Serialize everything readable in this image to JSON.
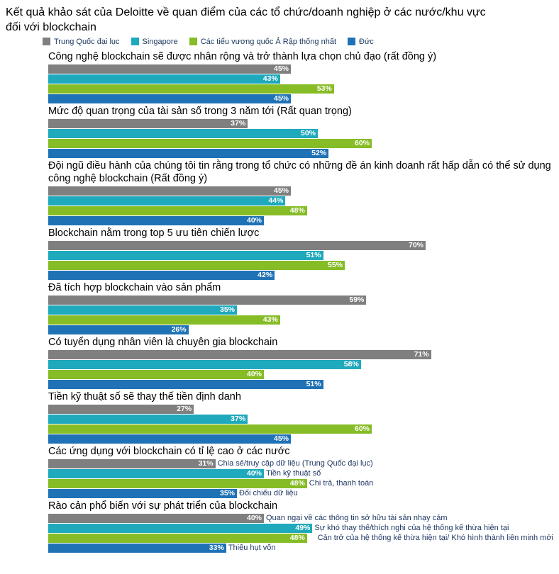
{
  "title": "Kết quả khảo sát của Deloitte về quan điểm của các tổ chức/doanh nghiệp ở các nước/khu vực đối với blockchain",
  "legend": [
    {
      "label": "Trung Quốc đại lục",
      "color": "#7F7F7F"
    },
    {
      "label": "Singapore",
      "color": "#1FA9BC"
    },
    {
      "label": "Các tiểu vương quốc Ả Rập thống nhất",
      "color": "#86BC25"
    },
    {
      "label": "Đức",
      "color": "#1F72B5"
    }
  ],
  "chart_data": {
    "type": "bar",
    "orientation": "horizontal",
    "value_unit": "%",
    "xlim": [
      0,
      100
    ],
    "legend_position": "top",
    "series": [
      "Trung Quốc đại lục",
      "Singapore",
      "Các tiểu vương quốc Ả Rập thống nhất",
      "Đức"
    ],
    "groups": [
      {
        "label": "Công nghệ blockchain sẽ được nhân rộng và trở thành lựa chọn chủ đạo (rất đồng ý)",
        "values": [
          45,
          43,
          53,
          45
        ]
      },
      {
        "label": "Mức độ quan trọng của tài sản số trong 3 năm tới (Rất quan trọng)",
        "values": [
          37,
          50,
          60,
          52
        ]
      },
      {
        "label": "Đội ngũ điều hành của chúng tôi tin rằng trong tổ chức có những đề án kinh doanh rất hấp dẫn có thể sử dụng công nghệ blockchain (Rất đồng ý)",
        "values": [
          45,
          44,
          48,
          40
        ]
      },
      {
        "label": "Blockchain nằm trong top 5 ưu tiên chiến lược",
        "values": [
          70,
          51,
          55,
          42
        ]
      },
      {
        "label": "Đã tích hợp blockchain vào sản phẩm",
        "values": [
          59,
          35,
          43,
          26
        ]
      },
      {
        "label": "Có tuyển dụng nhân viên là chuyên gia blockchain",
        "values": [
          71,
          58,
          40,
          51
        ]
      },
      {
        "label": "Tiền kỹ thuật số sẽ thay thế tiền định danh",
        "values": [
          27,
          37,
          60,
          45
        ]
      },
      {
        "label": "Các ứng dụng với blockchain có tỉ lệ cao ở các nước",
        "values": [
          31,
          40,
          48,
          35
        ],
        "annotations": [
          "Chia sẻ/truy cập dữ liệu (Trung Quốc đại lục)",
          "Tiền kỹ thuật số",
          "Chi trả, thanh toán",
          "Đối chiếu dữ liệu"
        ]
      },
      {
        "label": "Rào cản phổ biến với sự phát triển của blockchain",
        "values": [
          40,
          49,
          48,
          33
        ],
        "annotations": [
          "Quan ngại về các thông tin sở hữu tài sản nhạy cảm",
          "Sự khó thay thế/thích nghi của hệ thống kế thừa hiện tại",
          "Cản trở của hệ thống kế thừa hiện tại/ Khó hình thành liên minh mới",
          "Thiếu hụt vốn"
        ]
      }
    ]
  }
}
